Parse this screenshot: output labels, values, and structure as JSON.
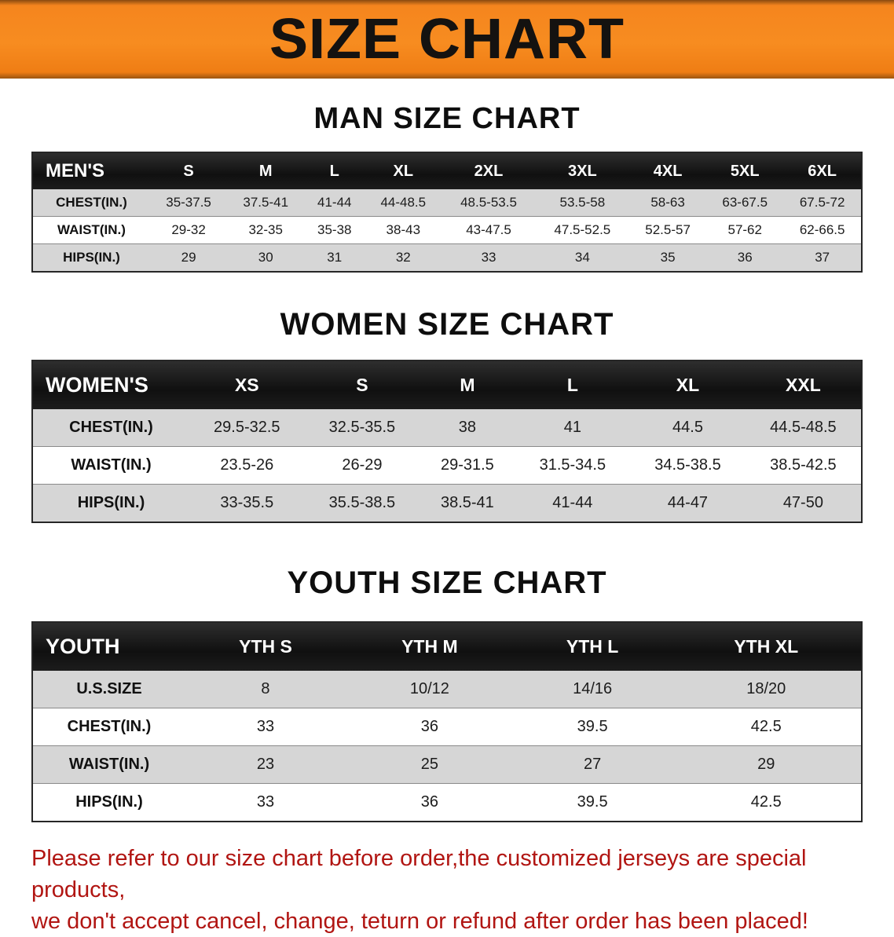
{
  "banner": {
    "title": "SIZE CHART",
    "background_color": "#f5851e"
  },
  "sections": [
    {
      "id": "men",
      "heading": "MAN SIZE CHART",
      "table": {
        "corner": "MEN'S",
        "columns": [
          "S",
          "M",
          "L",
          "XL",
          "2XL",
          "3XL",
          "4XL",
          "5XL",
          "6XL"
        ],
        "rows": [
          {
            "label": "CHEST(IN.)",
            "values": [
              "35-37.5",
              "37.5-41",
              "41-44",
              "44-48.5",
              "48.5-53.5",
              "53.5-58",
              "58-63",
              "63-67.5",
              "67.5-72"
            ]
          },
          {
            "label": "WAIST(IN.)",
            "values": [
              "29-32",
              "32-35",
              "35-38",
              "38-43",
              "43-47.5",
              "47.5-52.5",
              "52.5-57",
              "57-62",
              "62-66.5"
            ]
          },
          {
            "label": "HIPS(IN.)",
            "values": [
              "29",
              "30",
              "31",
              "32",
              "33",
              "34",
              "35",
              "36",
              "37"
            ]
          }
        ]
      }
    },
    {
      "id": "women",
      "heading": "WOMEN SIZE CHART",
      "table": {
        "corner": "WOMEN'S",
        "columns": [
          "XS",
          "S",
          "M",
          "L",
          "XL",
          "XXL"
        ],
        "rows": [
          {
            "label": "CHEST(IN.)",
            "values": [
              "29.5-32.5",
              "32.5-35.5",
              "38",
              "41",
              "44.5",
              "44.5-48.5"
            ]
          },
          {
            "label": "WAIST(IN.)",
            "values": [
              "23.5-26",
              "26-29",
              "29-31.5",
              "31.5-34.5",
              "34.5-38.5",
              "38.5-42.5"
            ]
          },
          {
            "label": "HIPS(IN.)",
            "values": [
              "33-35.5",
              "35.5-38.5",
              "38.5-41",
              "41-44",
              "44-47",
              "47-50"
            ]
          }
        ]
      }
    },
    {
      "id": "youth",
      "heading": "YOUTH SIZE CHART",
      "table": {
        "corner": "YOUTH",
        "columns": [
          "YTH S",
          "YTH M",
          "YTH L",
          "YTH XL"
        ],
        "rows": [
          {
            "label": "U.S.SIZE",
            "values": [
              "8",
              "10/12",
              "14/16",
              "18/20"
            ]
          },
          {
            "label": "CHEST(IN.)",
            "values": [
              "33",
              "36",
              "39.5",
              "42.5"
            ]
          },
          {
            "label": "WAIST(IN.)",
            "values": [
              "23",
              "25",
              "27",
              "29"
            ]
          },
          {
            "label": "HIPS(IN.)",
            "values": [
              "33",
              "36",
              "39.5",
              "42.5"
            ]
          }
        ]
      }
    }
  ],
  "footer": {
    "line1": "Please refer to our size chart before order,the customized jerseys are special products,",
    "line2": "we don't accept cancel, change, teturn or refund after order has been placed!"
  }
}
